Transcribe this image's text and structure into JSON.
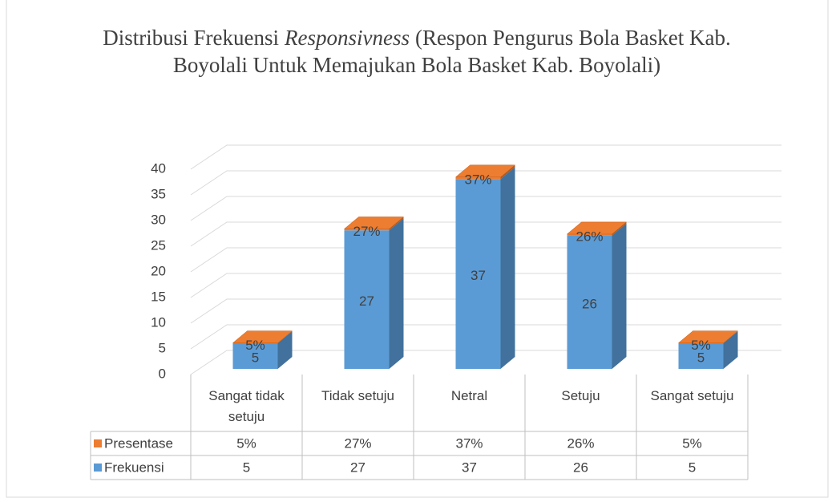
{
  "chart_data": {
    "type": "bar3d",
    "title": [
      "Distribusi Frekuensi",
      "Responsivness",
      "(Respon Pengurus Bola Basket Kab. Boyolali Untuk Memajukan Bola Basket Kab. Boyolali)"
    ],
    "categories": [
      "Sangat tidak setuju",
      "Tidak setuju",
      "Netral",
      "Setuju",
      "Sangat setuju"
    ],
    "series": [
      {
        "name": "Frekuensi",
        "color": "#5b9bd5",
        "values": [
          5,
          27,
          37,
          26,
          5
        ]
      },
      {
        "name": "Presentase",
        "color": "#ed7d31",
        "values": [
          0.05,
          0.27,
          0.37,
          0.26,
          0.05
        ],
        "value_labels": [
          "5%",
          "27%",
          "37%",
          "26%",
          "5%"
        ]
      }
    ],
    "ylim": [
      0,
      40
    ],
    "yticks": [
      0,
      5,
      10,
      15,
      20,
      25,
      30,
      35,
      40
    ],
    "grid": true,
    "stacked": true,
    "data_table": true
  }
}
